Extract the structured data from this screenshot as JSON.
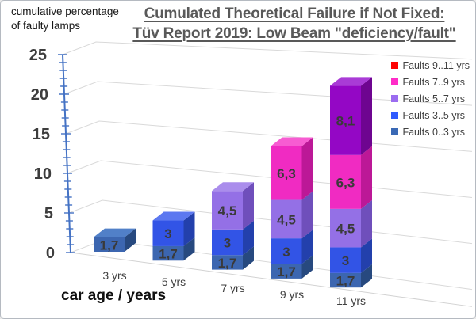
{
  "window": {
    "background": "#ffffff",
    "border_color": "#b5bac1"
  },
  "annotation": {
    "line1": "cumulative percentage",
    "line2": "of faulty lamps"
  },
  "title": {
    "line1": "Cumulated Theoretical Failure if Not Fixed:",
    "line2": "Tüv Report 2019: Low Beam \"deficiency/fault\"",
    "color": "#595959"
  },
  "legend": {
    "position": "right",
    "items": [
      {
        "label": "Faults 9..11 yrs",
        "color": "#fe0202"
      },
      {
        "label": "Faults 7..9 yrs",
        "color": "#ff2cc8"
      },
      {
        "label": "Faults 5..7 yrs",
        "color": "#9b6cf0"
      },
      {
        "label": "Faults 3..5 yrs",
        "color": "#2f5afe"
      },
      {
        "label": "Faults 0..3 yrs",
        "color": "#3a69b5"
      }
    ]
  },
  "x_axis_title": "car age / years",
  "chart_data": {
    "type": "bar",
    "stacked": true,
    "projection": "3d",
    "title": "Cumulated Theoretical Failure if Not Fixed: Tüv Report 2019: Low Beam \"deficiency/fault\"",
    "xlabel": "car age / years",
    "ylabel": "cumulative percentage of faulty lamps",
    "categories": [
      "3 yrs",
      "5 yrs",
      "7 yrs",
      "9 yrs",
      "11 yrs"
    ],
    "series": [
      {
        "name": "Faults 0..3 yrs",
        "values": [
          1.7,
          1.7,
          1.7,
          1.7,
          1.7
        ],
        "front": "#3c66b0",
        "side": "#27497f",
        "top": "#5180c8"
      },
      {
        "name": "Faults 3..5 yrs",
        "values": [
          0,
          3,
          3,
          3,
          3
        ],
        "front": "#3254e6",
        "side": "#2340ac",
        "top": "#5c78f0"
      },
      {
        "name": "Faults 5..7 yrs",
        "values": [
          0,
          0,
          4.5,
          4.5,
          4.5
        ],
        "front": "#9470e6",
        "side": "#6f4fbb",
        "top": "#aa8dec"
      },
      {
        "name": "Faults 7..9 yrs",
        "values": [
          0,
          0,
          0,
          6.3,
          6.3
        ],
        "front": "#f02bc2",
        "side": "#bc1897",
        "top": "#f75cd2"
      },
      {
        "name": "Faults 9..11 yrs",
        "values": [
          0,
          0,
          0,
          0,
          8.1
        ],
        "front": "#9407c5",
        "side": "#6e0590",
        "top": "#a93bd6"
      }
    ],
    "totals": [
      1.7,
      4.7,
      9.2,
      15.5,
      23.6
    ],
    "decimal_separator": ",",
    "ylim": [
      0,
      25
    ],
    "y_axis": {
      "ticks": [
        0,
        5,
        10,
        15,
        20,
        25
      ],
      "minor_step": 1,
      "axis_color": "#4472c4",
      "label_color": "#3d3d3d",
      "grid": true,
      "grid_color": "#d9d9d9"
    },
    "label_color": "#3a3a3a",
    "x_label_color": "#404040"
  }
}
